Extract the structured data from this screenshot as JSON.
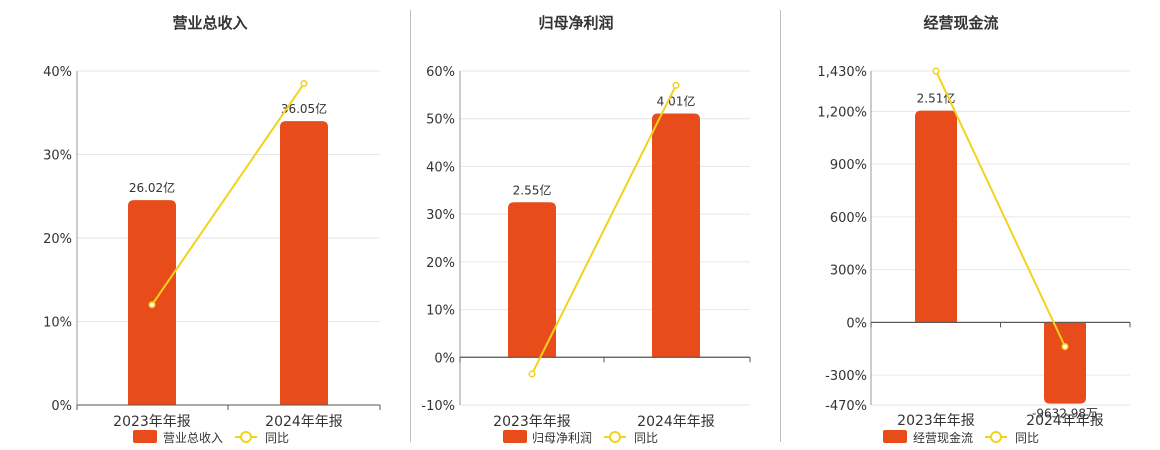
{
  "chart_data": [
    {
      "type": "bar",
      "title": "营业总收入",
      "categories": [
        "2023年年报",
        "2024年年报"
      ],
      "series": [
        {
          "name": "营业总收入",
          "type": "bar",
          "values": [
            26.02,
            36.05
          ],
          "unit": "亿",
          "labels": [
            "26.02亿",
            "36.05亿"
          ],
          "color": "#e84c1a"
        },
        {
          "name": "同比",
          "type": "line",
          "values": [
            12.0,
            38.5
          ],
          "unit": "%",
          "color": "#f2d31c"
        }
      ],
      "y_axis": {
        "min": 0,
        "max": 40,
        "ticks": [
          0,
          10,
          20,
          30,
          40
        ],
        "tick_labels": [
          "0%",
          "10%",
          "20%",
          "30%",
          "40%"
        ]
      },
      "bar_scale": {
        "min": 0,
        "max": 42.41
      },
      "grid": true,
      "legend": "bottom"
    },
    {
      "type": "bar",
      "title": "归母净利润",
      "categories": [
        "2023年年报",
        "2024年年报"
      ],
      "series": [
        {
          "name": "归母净利润",
          "type": "bar",
          "values": [
            2.55,
            4.01
          ],
          "unit": "亿",
          "labels": [
            "2.55亿",
            "4.01亿"
          ],
          "color": "#e84c1a"
        },
        {
          "name": "同比",
          "type": "line",
          "values": [
            -3.5,
            57.0
          ],
          "unit": "%",
          "color": "#f2d31c"
        }
      ],
      "y_axis": {
        "min": -10,
        "max": 60,
        "ticks": [
          -10,
          0,
          10,
          20,
          30,
          40,
          50,
          60
        ],
        "tick_labels": [
          "-10%",
          "0%",
          "10%",
          "20%",
          "30%",
          "40%",
          "50%",
          "60%"
        ]
      },
      "bar_scale": {
        "min": -0.785,
        "max": 4.71
      },
      "grid": true,
      "legend": "bottom"
    },
    {
      "type": "bar",
      "title": "经营现金流",
      "categories": [
        "2023年年报",
        "2024年年报"
      ],
      "series": [
        {
          "name": "经营现金流",
          "type": "bar",
          "values": [
            2.51,
            -0.963298
          ],
          "unit": "亿",
          "labels": [
            "2.51亿",
            "-9632.98万"
          ],
          "color": "#e84c1a"
        },
        {
          "name": "同比",
          "type": "line",
          "values": [
            1430,
            -138
          ],
          "unit": "%",
          "color": "#f2d31c"
        }
      ],
      "y_axis": {
        "min": -470,
        "max": 1430,
        "ticks": [
          -470,
          -300,
          0,
          300,
          600,
          900,
          1200,
          1430
        ],
        "tick_labels": [
          "-470%",
          "-300%",
          "0%",
          "300%",
          "600%",
          "900%",
          "1,200%",
          "1,430%"
        ]
      },
      "bar_scale": {
        "min": -0.98,
        "max": 2.98
      },
      "grid": true,
      "legend": "bottom"
    }
  ]
}
